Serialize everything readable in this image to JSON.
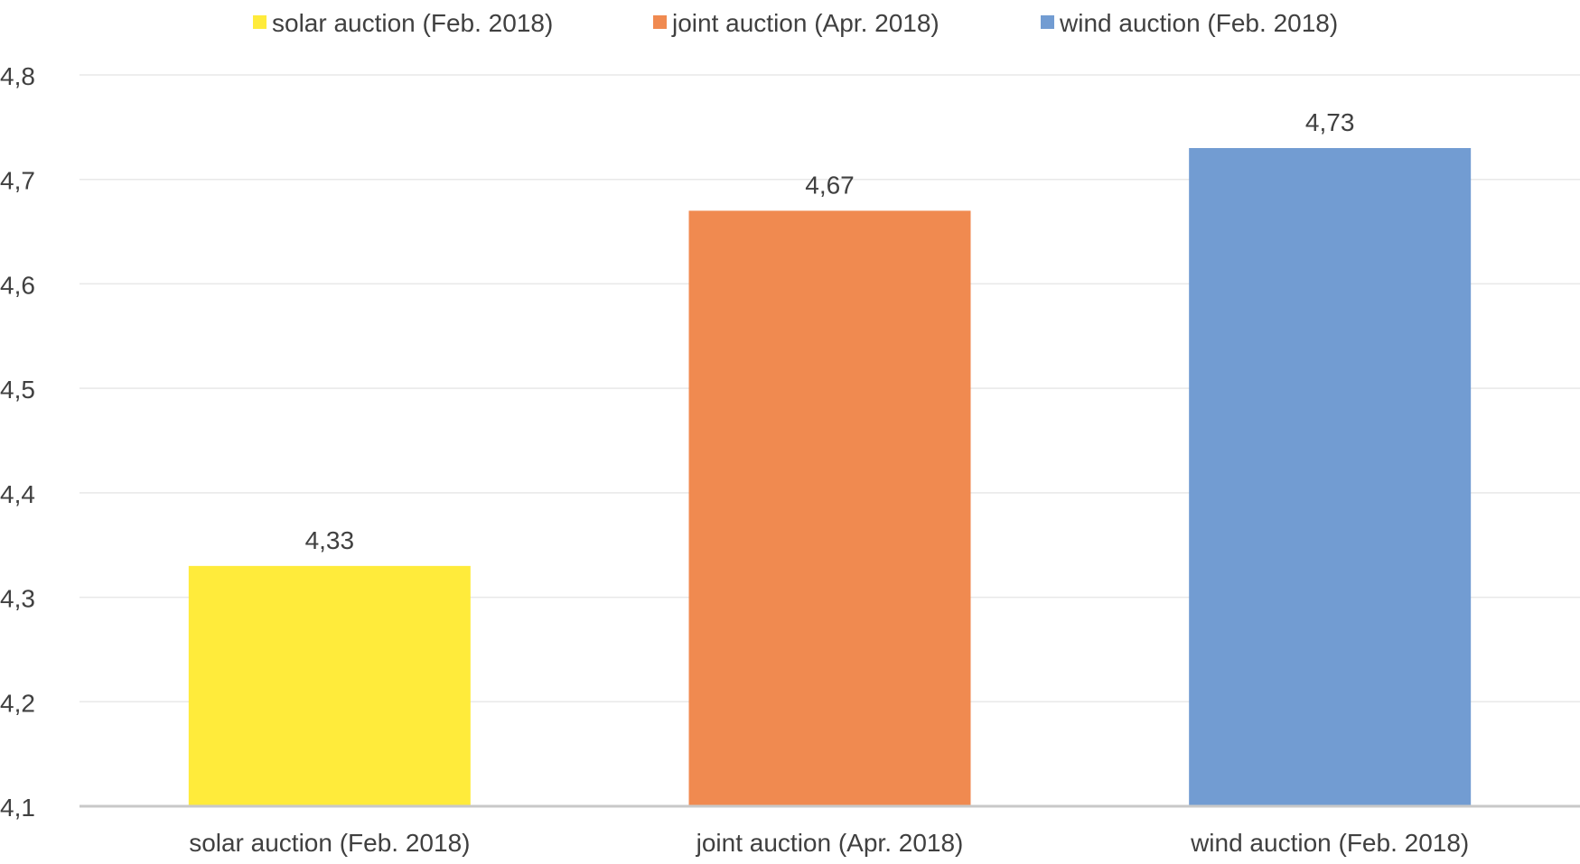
{
  "chart_data": {
    "type": "bar",
    "categories": [
      "solar auction (Feb. 2018)",
      "joint auction (Apr. 2018)",
      "wind auction (Feb. 2018)"
    ],
    "values": [
      4.33,
      4.67,
      4.73
    ],
    "value_labels": [
      "4,33",
      "4,67",
      "4,73"
    ],
    "colors": [
      "#FFEB3B",
      "#F08A50",
      "#729CD2"
    ],
    "legend": {
      "placement": "top",
      "entries": [
        "solar auction (Feb. 2018)",
        "joint auction (Apr. 2018)",
        "wind auction (Feb. 2018)"
      ]
    },
    "ylim": [
      4.1,
      4.8
    ],
    "yticks": [
      4.1,
      4.2,
      4.3,
      4.4,
      4.5,
      4.6,
      4.7,
      4.8
    ],
    "ytick_labels": [
      "4,1",
      "4,2",
      "4,3",
      "4,4",
      "4,5",
      "4,6",
      "4,7",
      "4,8"
    ],
    "grid": true,
    "title": "",
    "xlabel": "",
    "ylabel": ""
  }
}
